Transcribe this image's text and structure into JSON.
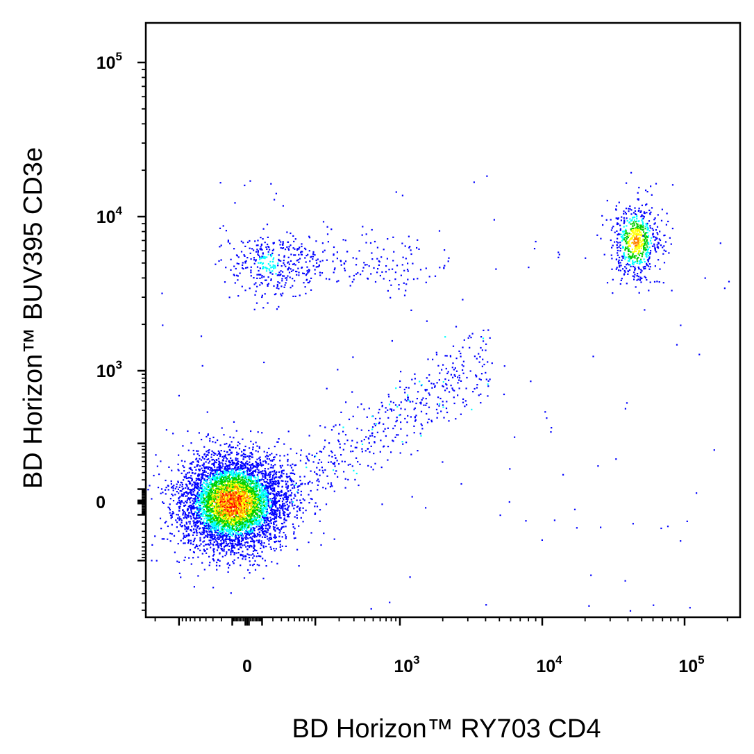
{
  "chart_data": {
    "type": "scatter",
    "title": "",
    "xlabel": "BD Horizon™ RY703 CD4",
    "ylabel": "BD Horizon™ BUV395 CD3e",
    "x_scale": "biexponential",
    "y_scale": "biexponential",
    "xlim": [
      -200,
      200000
    ],
    "ylim": [
      -180,
      200000
    ],
    "x_ticks": [
      {
        "base": "0",
        "exp": "",
        "value": 0
      },
      {
        "base": "10",
        "exp": "3",
        "value": 1000
      },
      {
        "base": "10",
        "exp": "4",
        "value": 10000
      },
      {
        "base": "10",
        "exp": "5",
        "value": 100000
      }
    ],
    "y_ticks": [
      {
        "base": "0",
        "exp": "",
        "value": 0
      },
      {
        "base": "10",
        "exp": "3",
        "value": 1000
      },
      {
        "base": "10",
        "exp": "4",
        "value": 10000
      },
      {
        "base": "10",
        "exp": "5",
        "value": 100000
      }
    ],
    "density_colors": [
      "#0000ff",
      "#00ffff",
      "#00d000",
      "#ffff00",
      "#ff8000",
      "#ff0000"
    ],
    "populations": [
      {
        "description": "CD4- CD3e- cluster",
        "center": [
          -10,
          0
        ],
        "approx_events": 5200
      },
      {
        "description": "CD4- CD3e+ cluster",
        "center": [
          20,
          5000
        ],
        "approx_events": 500
      },
      {
        "description": "CD4+ CD3e+ cluster",
        "center": [
          45000,
          7000
        ],
        "approx_events": 650
      },
      {
        "description": "CD4 intermediate diagonal stream",
        "center": [
          500,
          150
        ],
        "approx_events": 500
      }
    ],
    "grid": false,
    "legend": "none"
  }
}
